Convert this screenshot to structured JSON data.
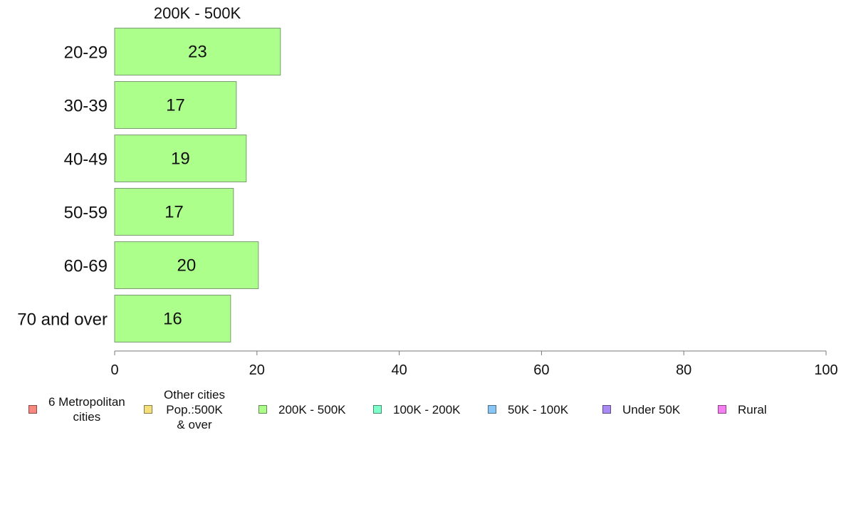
{
  "chart_data": {
    "type": "bar",
    "orientation": "horizontal",
    "title": "200K - 500K",
    "categories": [
      "20-29",
      "30-39",
      "40-49",
      "50-59",
      "60-69",
      "70 and over"
    ],
    "series": [
      {
        "name": "200K - 500K",
        "values": [
          23.3,
          17.1,
          18.5,
          16.7,
          20.2,
          16.3
        ],
        "color": "#adff8b"
      }
    ],
    "data_labels": [
      "23",
      "17",
      "19",
      "17",
      "20",
      "16"
    ],
    "xlim": [
      0,
      100
    ],
    "x_ticks": [
      0,
      20,
      40,
      60,
      80,
      100
    ],
    "grid": false,
    "legend_position": "bottom",
    "legend": [
      {
        "label": "6 Metropolitan\ncities",
        "color": "#f8877f"
      },
      {
        "label": "Other cities\nPop.:500K\n & over",
        "color": "#f5e07e"
      },
      {
        "label": "200K - 500K",
        "color": "#adff8b"
      },
      {
        "label": "100K - 200K",
        "color": "#7fffc9"
      },
      {
        "label": "50K - 100K",
        "color": "#8ac6f5"
      },
      {
        "label": "Under 50K",
        "color": "#a98af5"
      },
      {
        "label": "Rural",
        "color": "#f57ff0"
      }
    ]
  }
}
